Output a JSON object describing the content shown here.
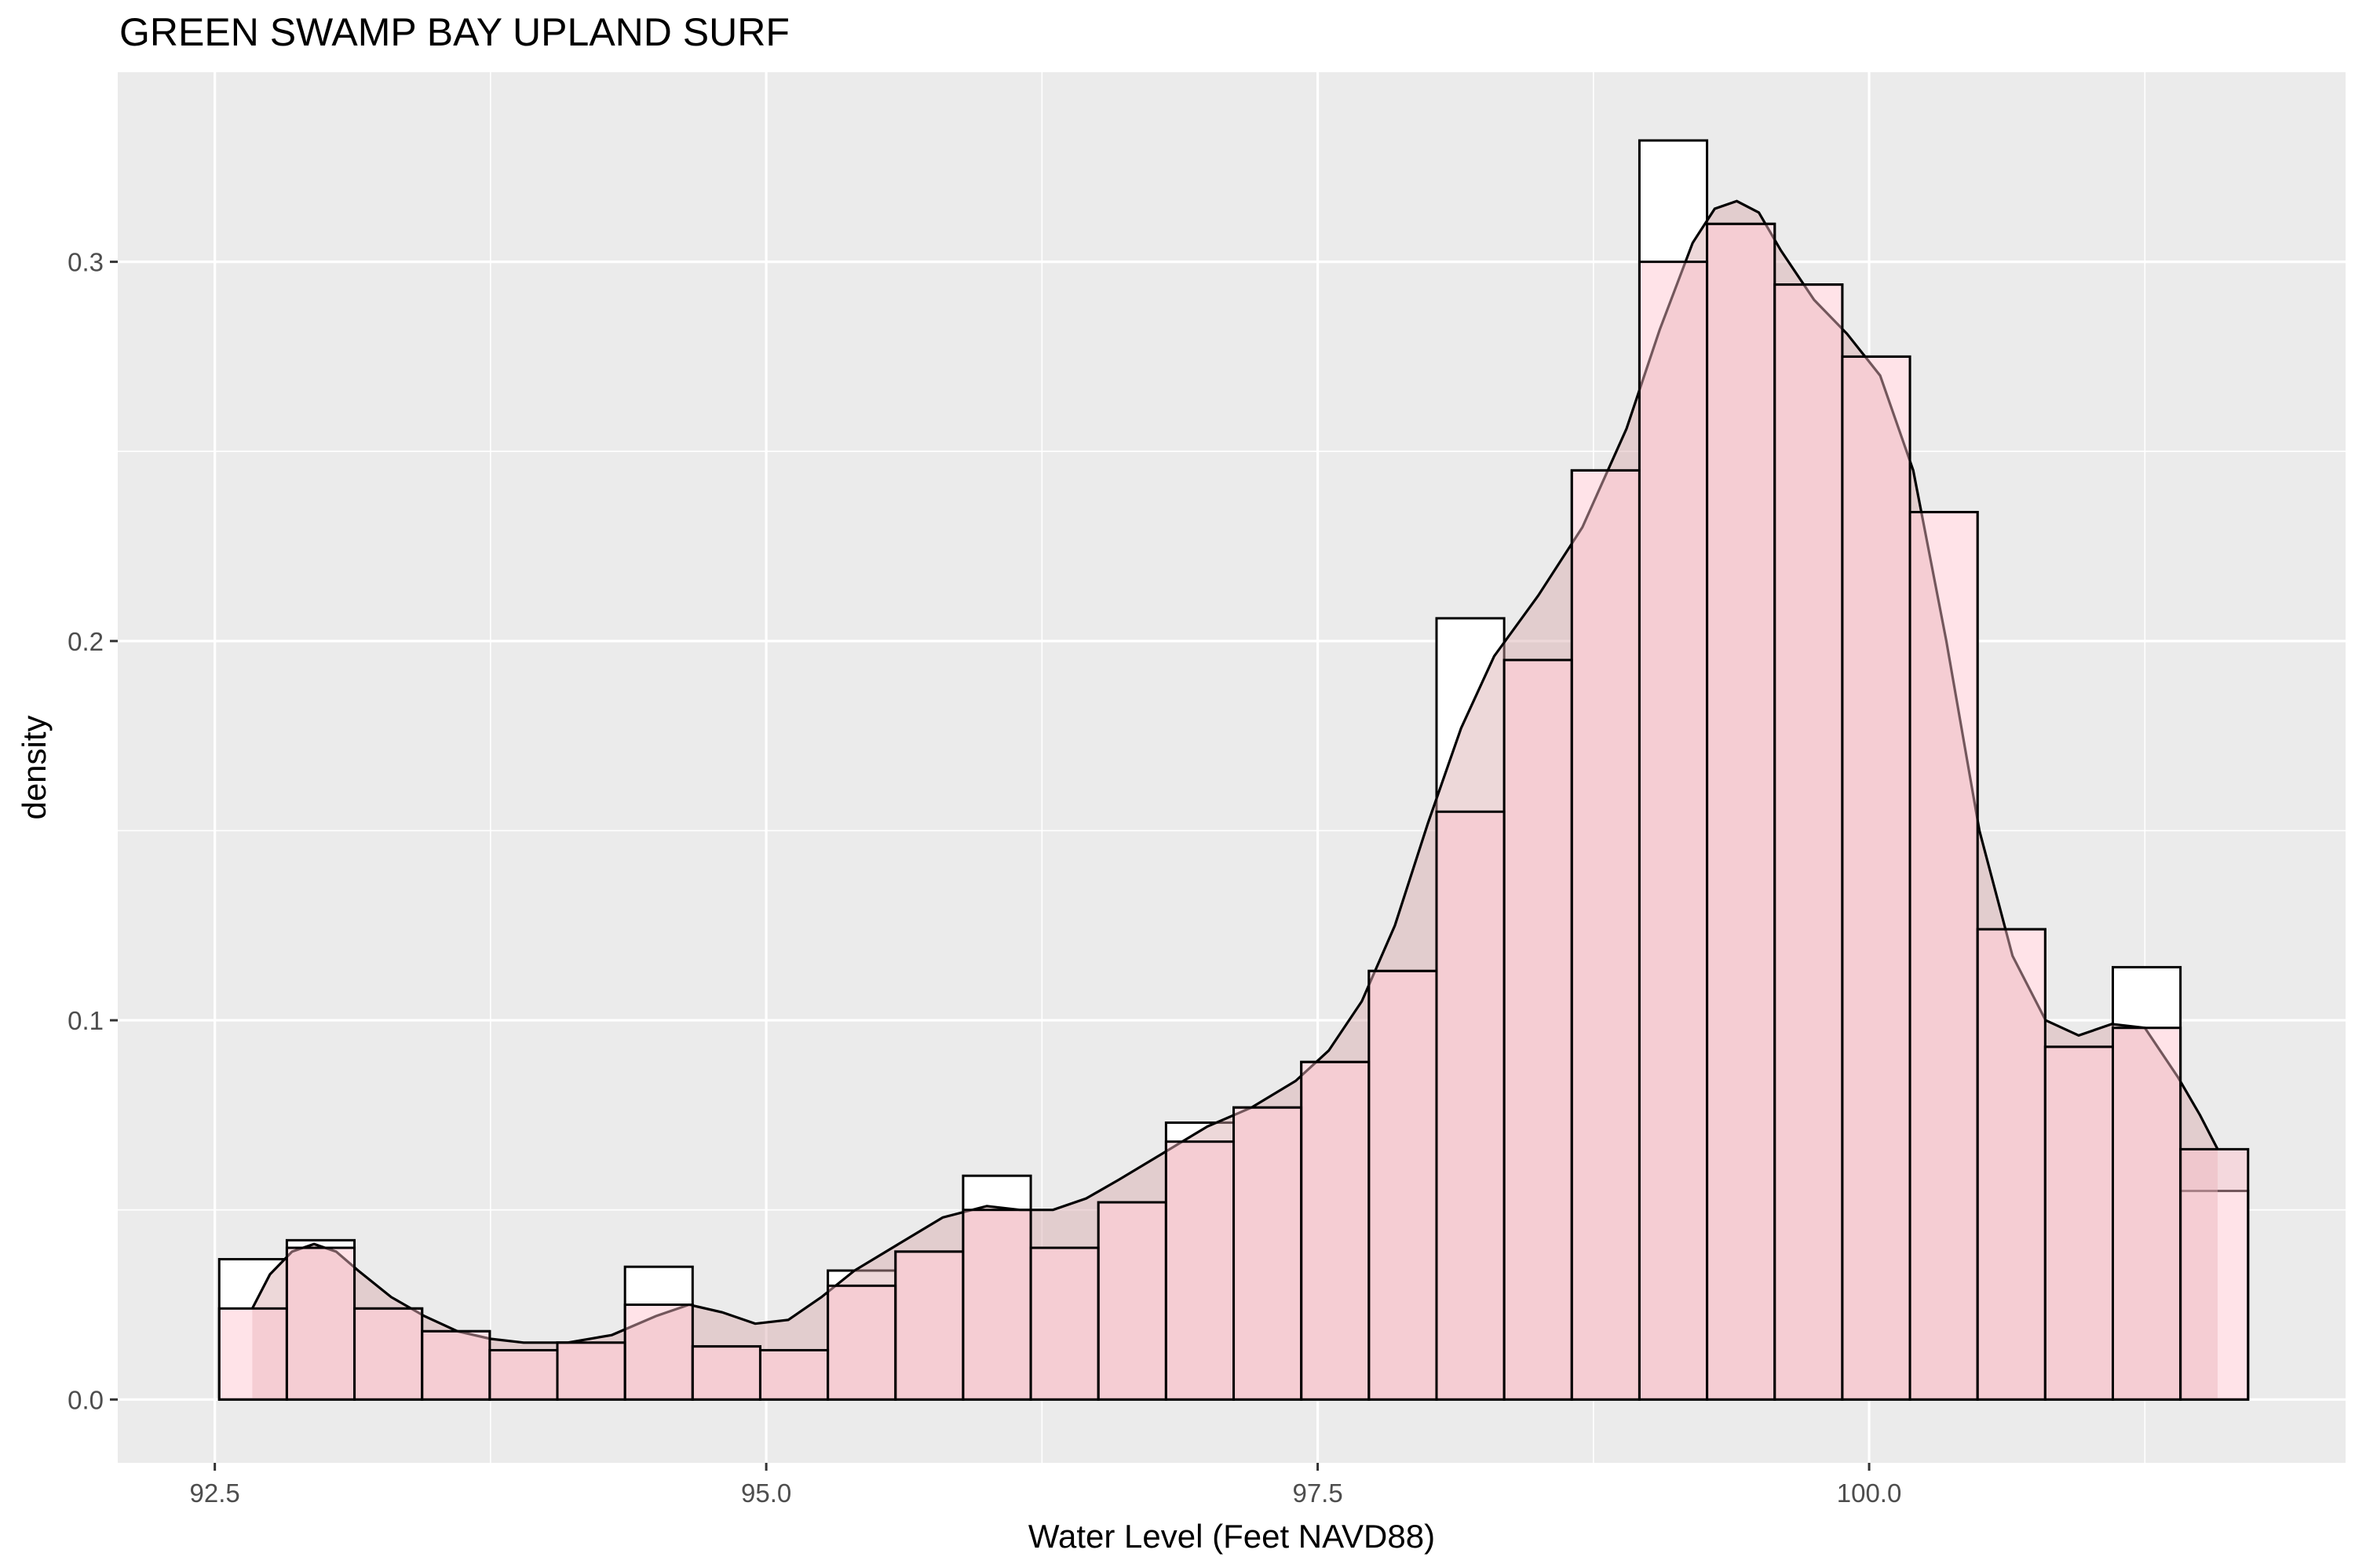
{
  "chart_data": {
    "type": "bar",
    "title": "GREEN SWAMP BAY UPLAND SURF",
    "xlabel": "Water Level (Feet NAVD88)",
    "ylabel": "density",
    "xlim": [
      92.06,
      102.16
    ],
    "ylim": [
      -0.0167,
      0.35
    ],
    "x_ticks": [
      92.5,
      95.0,
      97.5,
      100.0
    ],
    "x_tick_labels": [
      "92.5",
      "95.0",
      "97.5",
      "100.0"
    ],
    "y_ticks": [
      0.0,
      0.1,
      0.2,
      0.3
    ],
    "y_tick_labels": [
      "0.0",
      "0.1",
      "0.2",
      "0.3"
    ],
    "grid": true,
    "panel_background": "#ebebeb",
    "series": [
      {
        "type": "histogram",
        "fill": "#ffffff",
        "stroke": "#000000",
        "bin_width": 0.3066,
        "bin_start": 92.52,
        "values": [
          0.037,
          0.042,
          0.024,
          0.018,
          0.013,
          0.015,
          0.035,
          0.014,
          0.013,
          0.034,
          0.039,
          0.059,
          0.04,
          0.052,
          0.073,
          0.077,
          0.089,
          0.113,
          0.206,
          0.195,
          0.245,
          0.332,
          0.31,
          0.294,
          0.275,
          0.234,
          0.124,
          0.093,
          0.114,
          0.055
        ]
      },
      {
        "type": "histogram",
        "fill": "#ffc0cb",
        "fill_opacity": 0.45,
        "stroke": "#000000",
        "bin_width": 0.3066,
        "bin_start": 92.52,
        "values": [
          0.024,
          0.04,
          0.024,
          0.018,
          0.013,
          0.015,
          0.025,
          0.014,
          0.013,
          0.03,
          0.039,
          0.05,
          0.04,
          0.052,
          0.068,
          0.077,
          0.089,
          0.113,
          0.155,
          0.195,
          0.245,
          0.3,
          0.31,
          0.294,
          0.275,
          0.234,
          0.124,
          0.093,
          0.098,
          0.066
        ]
      },
      {
        "type": "density",
        "fill": "#d8a8aa",
        "fill_opacity": 0.45,
        "stroke": "#000000",
        "x": [
          92.67,
          92.75,
          92.85,
          92.95,
          93.05,
          93.15,
          93.3,
          93.45,
          93.6,
          93.75,
          93.9,
          94.1,
          94.3,
          94.5,
          94.65,
          94.8,
          94.95,
          95.1,
          95.25,
          95.4,
          95.6,
          95.8,
          96.0,
          96.15,
          96.3,
          96.45,
          96.6,
          96.8,
          97.0,
          97.2,
          97.4,
          97.55,
          97.7,
          97.85,
          98.0,
          98.15,
          98.3,
          98.5,
          98.7,
          98.9,
          99.05,
          99.2,
          99.3,
          99.4,
          99.5,
          99.6,
          99.75,
          99.9,
          100.05,
          100.2,
          100.35,
          100.5,
          100.65,
          100.8,
          100.95,
          101.1,
          101.25,
          101.4,
          101.5,
          101.58
        ],
        "y": [
          0.024,
          0.033,
          0.039,
          0.041,
          0.039,
          0.034,
          0.027,
          0.022,
          0.018,
          0.016,
          0.015,
          0.015,
          0.017,
          0.022,
          0.025,
          0.023,
          0.02,
          0.021,
          0.027,
          0.034,
          0.041,
          0.048,
          0.051,
          0.05,
          0.05,
          0.053,
          0.058,
          0.065,
          0.072,
          0.077,
          0.084,
          0.092,
          0.105,
          0.125,
          0.152,
          0.177,
          0.196,
          0.212,
          0.23,
          0.256,
          0.282,
          0.305,
          0.314,
          0.316,
          0.313,
          0.303,
          0.29,
          0.281,
          0.27,
          0.245,
          0.2,
          0.15,
          0.117,
          0.1,
          0.096,
          0.099,
          0.098,
          0.085,
          0.075,
          0.066
        ]
      }
    ]
  }
}
